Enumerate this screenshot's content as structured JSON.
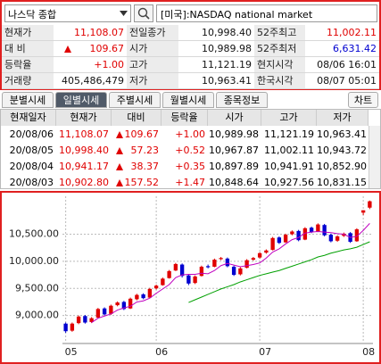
{
  "search": {
    "value": "나스닥 종합",
    "market": "[미국]:NASDAQ national market"
  },
  "quote": {
    "rows": [
      [
        "현재가",
        "11,108.07",
        "전일종가",
        "10,998.40",
        "52주최고",
        "11,002.11"
      ],
      [
        "대 비",
        "109.67",
        "시가",
        "10,989.98",
        "52주최저",
        "6,631.42"
      ],
      [
        "등락율",
        "+1.00",
        "고가",
        "11,121.19",
        "현지시각",
        "08/06 16:01"
      ],
      [
        "거래량",
        "405,486,479",
        "저가",
        "10,963.41",
        "한국시각",
        "08/07 05:01"
      ]
    ]
  },
  "tabs": [
    "분별시세",
    "일별시세",
    "주별시세",
    "월별시세",
    "종목정보"
  ],
  "chart_button": "차트",
  "table": {
    "header": [
      "현재일자",
      "현재가",
      "대비",
      "등락율",
      "시가",
      "고가",
      "저가"
    ],
    "rows": [
      [
        "20/08/06",
        "11,108.07",
        "109.67",
        "+1.00",
        "10,989.98",
        "11,121.19",
        "10,963.41"
      ],
      [
        "20/08/05",
        "10,998.40",
        "57.23",
        "+0.52",
        "10,967.87",
        "11,002.11",
        "10,943.72"
      ],
      [
        "20/08/04",
        "10,941.17",
        "38.37",
        "+0.35",
        "10,897.89",
        "10,941.91",
        "10,852.90"
      ],
      [
        "20/08/03",
        "10,902.80",
        "157.52",
        "+1.47",
        "10,848.64",
        "10,927.56",
        "10,831.15"
      ]
    ]
  },
  "chart_data": {
    "type": "candlestick",
    "up_color": "#e00000",
    "down_color": "#0000d0",
    "open": [
      8850,
      8720,
      8860,
      8990,
      8880,
      8960,
      9130,
      9030,
      9190,
      9250,
      9130,
      9300,
      9390,
      9330,
      9500,
      9560,
      9690,
      9830,
      9940,
      9740,
      9600,
      9730,
      9910,
      9900,
      10040,
      10050,
      9900,
      9760,
      9880,
      10030,
      10070,
      10160,
      10210,
      10440,
      10350,
      10500,
      10560,
      10400,
      10620,
      10550,
      10670,
      10490,
      10380,
      10470,
      10520,
      10370,
      10897.89,
      10989.98
    ],
    "high": [
      8870,
      8870,
      9000,
      9010,
      8970,
      9140,
      9150,
      9200,
      9260,
      9270,
      9330,
      9400,
      9410,
      9510,
      9570,
      9700,
      9840,
      9970,
      9960,
      9760,
      9740,
      9920,
      9940,
      10050,
      10080,
      10070,
      9920,
      9890,
      10040,
      10080,
      10170,
      10220,
      10450,
      10460,
      10510,
      10570,
      10580,
      10630,
      10640,
      10700,
      10690,
      10510,
      10480,
      10530,
      10540,
      10610,
      10941.91,
      11121.19
    ],
    "low": [
      8680,
      8700,
      8840,
      8850,
      8860,
      8950,
      9000,
      9010,
      9170,
      9100,
      9120,
      9280,
      9300,
      9320,
      9480,
      9550,
      9680,
      9820,
      9700,
      9560,
      9580,
      9720,
      9870,
      9890,
      10020,
      9890,
      9730,
      9740,
      9870,
      10010,
      10050,
      10140,
      10200,
      10320,
      10340,
      10480,
      10370,
      10390,
      10520,
      10540,
      10460,
      10350,
      10360,
      10450,
      10340,
      10360,
      10852.9,
      10963.41
    ],
    "close": [
      8710,
      8850,
      8980,
      8870,
      8950,
      9120,
      9020,
      9180,
      9240,
      9120,
      9310,
      9380,
      9320,
      9490,
      9550,
      9680,
      9820,
      9950,
      9730,
      9590,
      9720,
      9900,
      9890,
      10030,
      10060,
      9910,
      9750,
      9870,
      10020,
      10060,
      10150,
      10200,
      10430,
      10340,
      10490,
      10550,
      10390,
      10610,
      10540,
      10680,
      10480,
      10370,
      10460,
      10510,
      10360,
      10590,
      10941.17,
      11108.07
    ],
    "series": [
      {
        "color": "#c000c0",
        "values": [
          null,
          null,
          null,
          null,
          8870,
          8950,
          8990,
          9030,
          9100,
          9140,
          9170,
          9250,
          9270,
          9320,
          9410,
          9490,
          9570,
          9700,
          9750,
          9760,
          9760,
          9780,
          9770,
          9830,
          9920,
          9960,
          9930,
          9900,
          9920,
          9940,
          9970,
          10060,
          10170,
          10230,
          10320,
          10400,
          10440,
          10520,
          10540,
          10550,
          10540,
          10530,
          10510,
          10500,
          10440,
          10460,
          10570,
          10700
        ]
      },
      {
        "color": "#00a000",
        "values": [
          null,
          null,
          null,
          null,
          null,
          null,
          null,
          null,
          null,
          null,
          null,
          null,
          null,
          null,
          null,
          null,
          null,
          null,
          null,
          9240,
          9290,
          9340,
          9390,
          9440,
          9490,
          9530,
          9570,
          9620,
          9660,
          9700,
          9740,
          9770,
          9800,
          9830,
          9870,
          9910,
          9950,
          9990,
          10030,
          10080,
          10110,
          10150,
          10180,
          10210,
          10230,
          10260,
          10310,
          10360
        ]
      }
    ],
    "xlim": [
      -0.5,
      47.5
    ],
    "xticks": [
      {
        "value": 0,
        "label": "05"
      },
      {
        "value": 14,
        "label": "06"
      },
      {
        "value": 30,
        "label": "07"
      },
      {
        "value": 46,
        "label": "08"
      }
    ],
    "ylim": [
      8500,
      11200
    ],
    "yticks": [
      {
        "value": 9000,
        "label": "9,000.00"
      },
      {
        "value": 9500,
        "label": "9,500.00"
      },
      {
        "value": 10000,
        "label": "10,000.00"
      },
      {
        "value": 10500,
        "label": "10,500.00"
      }
    ],
    "grid": true
  }
}
